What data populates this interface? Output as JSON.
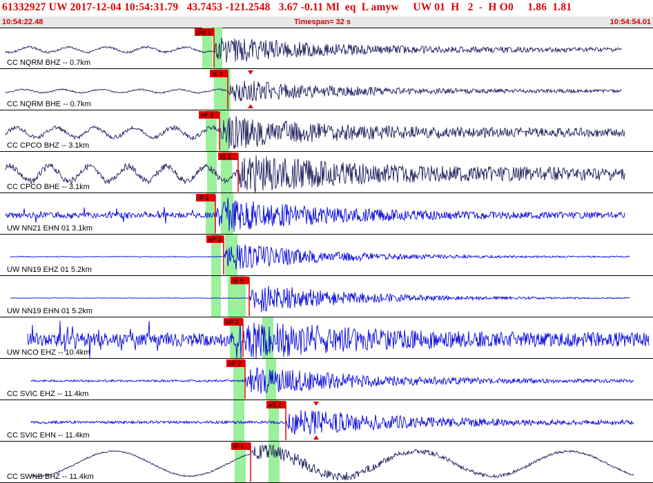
{
  "header": {
    "summary": "61332927 UW 2017-12-04 10:54:31.79   43.7453 -121.2548   3.67 -0.11 Ml  eq  L amyw     UW 01  H   2  -  H O0     1.86  1.81",
    "start_time": "10:54:22.48",
    "timespan": "Timespan=  32 s",
    "end_time": "10:54:54.01"
  },
  "colors": {
    "trace_dark": "#1a1a5a",
    "trace_blue": "#0000dd",
    "pick": "#e00000",
    "window": "#90ee90",
    "header_text": "#e00000"
  },
  "channels": [
    {
      "label": "CC NQRM BHZ -- 0.7km",
      "picks": [
        "iPd 1"
      ],
      "color": "dark"
    },
    {
      "label": "CC NQRM BHE -- 0.7km",
      "picks": [
        "iS 1"
      ],
      "color": "dark"
    },
    {
      "label": "CC CPCO BHZ -- 3.1km",
      "picks": [
        "eP 2"
      ],
      "color": "dark"
    },
    {
      "label": "CC CPCO BHE -- 3.1km",
      "picks": [
        "iS 1"
      ],
      "color": "dark"
    },
    {
      "label": "UW NN21 EHN 01 3.1km",
      "picks": [
        "iP 1"
      ],
      "color": "blue"
    },
    {
      "label": "UW NN19 EHZ 01 5.2km",
      "picks": [
        "eP 2"
      ],
      "color": "blue"
    },
    {
      "label": "UW NN19 EHN 01 5.2km",
      "picks": [
        "iS 0"
      ],
      "color": "blue"
    },
    {
      "label": "UW NCO EHZ -- 10.4km",
      "picks": [
        "eP 2"
      ],
      "color": "blue"
    },
    {
      "label": "CC SVIC EHZ -- 11.4km",
      "picks": [
        "eP 2"
      ],
      "color": "blue"
    },
    {
      "label": "CC SVIC EHN -- 11.4km",
      "picks": [
        "eS 2"
      ],
      "color": "blue"
    },
    {
      "label": "CC SWNB BHZ -- 11.4km",
      "picks": [
        "iP 1"
      ],
      "color": "dark"
    }
  ]
}
